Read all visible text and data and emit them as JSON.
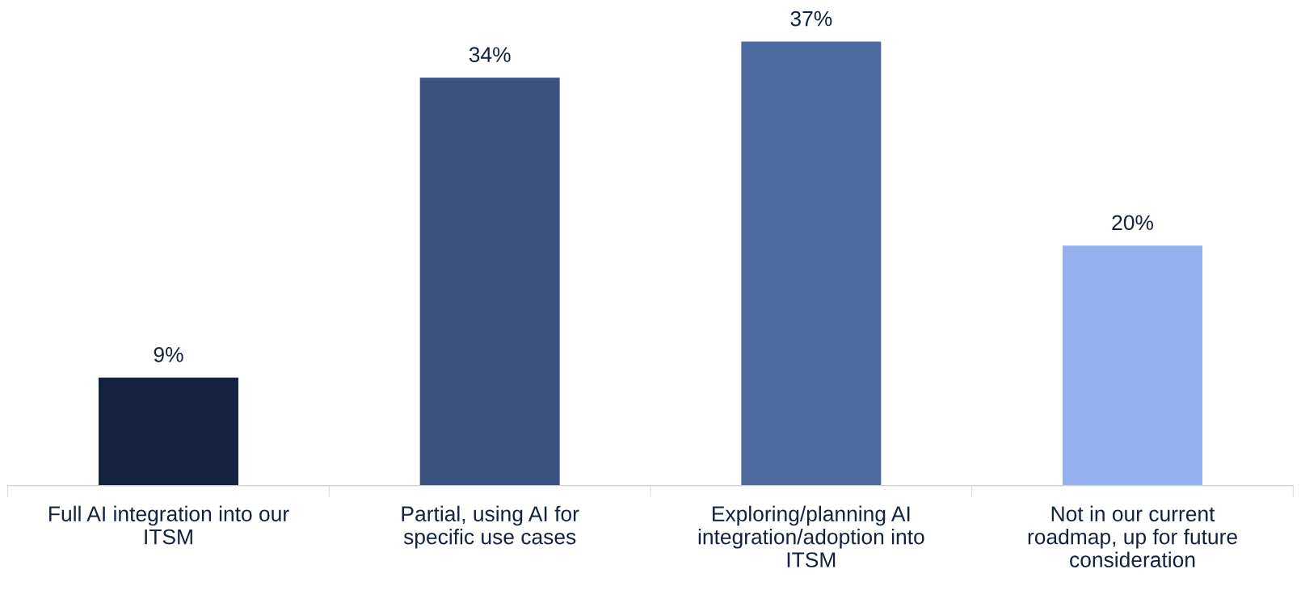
{
  "chart_data": {
    "type": "bar",
    "categories": [
      "Full AI integration into our\nITSM",
      "Partial, using AI for\nspecific use cases",
      "Exploring/planning AI\nintegration/adoption into\nITSM",
      "Not in our current\nroadmap, up for future\nconsideration"
    ],
    "values": [
      9,
      34,
      37,
      20
    ],
    "colors": [
      "#13223f",
      "#3b527f",
      "#4f6a9f",
      "#94b0ee"
    ],
    "value_labels": [
      "9%",
      "34%",
      "37%",
      "20%"
    ],
    "grid": false,
    "legend": false
  }
}
